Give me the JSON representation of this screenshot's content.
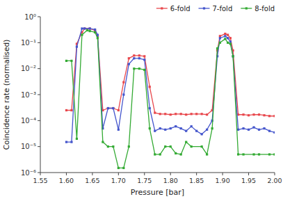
{
  "chart_data": {
    "type": "line",
    "xlabel": "Pressure [bar]",
    "ylabel": "Coincidence rate (normalised)",
    "log": "y",
    "grid": false,
    "legend": "upper right",
    "marker": "square",
    "xlim": [
      1.55,
      2.0
    ],
    "xticks": [
      1.55,
      {
        "value": 1.6,
        "label": "1.60"
      },
      1.65,
      {
        "value": 1.7,
        "label": "1.70"
      },
      1.75,
      {
        "value": 1.8,
        "label": "1.80"
      },
      1.85,
      {
        "value": 1.9,
        "label": "1.90"
      },
      1.95,
      {
        "value": 2.0,
        "label": "2.00"
      }
    ],
    "ylim": [
      1e-06,
      1.0
    ],
    "yticks": [
      {
        "value": 1e-06,
        "label": "10⁻⁶"
      },
      {
        "value": 1e-05,
        "label": "10⁻⁵"
      },
      {
        "value": 0.0001,
        "label": "10⁻⁴"
      },
      {
        "value": 0.001,
        "label": "10⁻³"
      },
      {
        "value": 0.01,
        "label": "10⁻²"
      },
      {
        "value": 0.1,
        "label": "10⁻¹"
      },
      {
        "value": 1.0,
        "label": "10⁰"
      }
    ],
    "series": [
      {
        "name": "6-fold",
        "color": "#e8474c",
        "x": [
          1.6,
          1.61,
          1.62,
          1.63,
          1.635,
          1.645,
          1.655,
          1.66,
          1.67,
          1.68,
          1.69,
          1.7,
          1.71,
          1.72,
          1.73,
          1.74,
          1.75,
          1.76,
          1.77,
          1.78,
          1.79,
          1.8,
          1.81,
          1.82,
          1.83,
          1.84,
          1.85,
          1.86,
          1.87,
          1.88,
          1.89,
          1.895,
          1.905,
          1.91,
          1.915,
          1.92,
          1.93,
          1.94,
          1.95,
          1.96,
          1.97,
          1.98,
          1.99,
          2.0
        ],
        "values": [
          0.00025,
          0.00025,
          0.09,
          0.25,
          0.35,
          0.35,
          0.3,
          0.18,
          0.00025,
          0.0003,
          0.0003,
          0.00025,
          0.003,
          0.025,
          0.032,
          0.032,
          0.03,
          0.002,
          0.0002,
          0.00018,
          0.00018,
          0.00017,
          0.00018,
          0.00018,
          0.00017,
          0.00018,
          0.00018,
          0.00018,
          0.00017,
          0.00025,
          0.05,
          0.18,
          0.22,
          0.2,
          0.15,
          0.05,
          0.00017,
          0.00017,
          0.00016,
          0.00017,
          0.00017,
          0.00016,
          0.00015,
          0.00015
        ]
      },
      {
        "name": "7-fold",
        "color": "#4455cc",
        "x": [
          1.6,
          1.61,
          1.62,
          1.63,
          1.635,
          1.645,
          1.655,
          1.66,
          1.67,
          1.68,
          1.69,
          1.7,
          1.71,
          1.72,
          1.73,
          1.74,
          1.75,
          1.76,
          1.77,
          1.78,
          1.79,
          1.8,
          1.81,
          1.82,
          1.83,
          1.84,
          1.85,
          1.86,
          1.87,
          1.88,
          1.89,
          1.895,
          1.905,
          1.91,
          1.915,
          1.92,
          1.93,
          1.94,
          1.95,
          1.96,
          1.97,
          1.98,
          1.99,
          2.0
        ],
        "values": [
          1.5e-05,
          1.5e-05,
          0.07,
          0.35,
          0.35,
          0.35,
          0.32,
          0.2,
          5e-05,
          0.0003,
          0.0003,
          4.5e-05,
          0.001,
          0.015,
          0.025,
          0.025,
          0.022,
          0.0003,
          4e-05,
          5e-05,
          4.5e-05,
          5e-05,
          6e-05,
          5e-05,
          4e-05,
          6e-05,
          4e-05,
          3e-05,
          4.5e-05,
          0.0001,
          0.03,
          0.15,
          0.18,
          0.15,
          0.11,
          0.03,
          4.5e-05,
          5e-05,
          4.5e-05,
          5.5e-05,
          4.5e-05,
          5e-05,
          4e-05,
          3.5e-05
        ]
      },
      {
        "name": "8-fold",
        "color": "#33aa33",
        "x": [
          1.6,
          1.61,
          1.62,
          1.63,
          1.64,
          1.645,
          1.655,
          1.66,
          1.67,
          1.68,
          1.69,
          1.7,
          1.71,
          1.72,
          1.73,
          1.74,
          1.75,
          1.76,
          1.77,
          1.78,
          1.79,
          1.8,
          1.81,
          1.82,
          1.83,
          1.84,
          1.86,
          1.87,
          1.88,
          1.89,
          1.895,
          1.905,
          1.91,
          1.915,
          1.92,
          1.93,
          1.94,
          1.96,
          1.97,
          1.99,
          2.0
        ],
        "values": [
          0.02,
          0.02,
          2e-05,
          0.2,
          0.3,
          0.28,
          0.25,
          0.15,
          1.5e-05,
          1e-05,
          1e-05,
          1.5e-06,
          1.5e-06,
          1e-05,
          0.01,
          0.01,
          0.009,
          5e-05,
          5e-06,
          5e-06,
          1e-05,
          1e-05,
          5.5e-06,
          5e-06,
          1.5e-05,
          1e-05,
          1e-05,
          5e-06,
          5e-05,
          0.06,
          0.1,
          0.14,
          0.1,
          0.09,
          0.03,
          5e-06,
          5e-06,
          5e-06,
          5e-06,
          5e-06,
          5e-06
        ]
      }
    ]
  }
}
